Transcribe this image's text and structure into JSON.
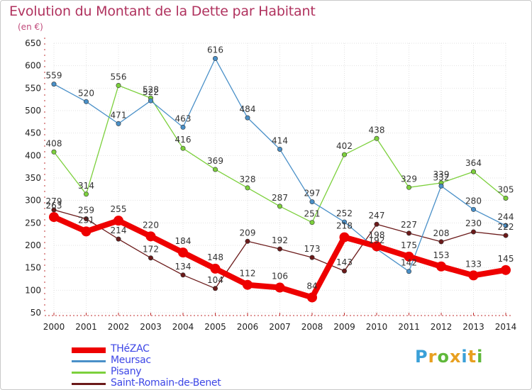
{
  "header": {
    "title": "Evolution du Montant de la Dette par Habitant",
    "unit": "(en €)"
  },
  "logo": {
    "text": "Proxiti"
  },
  "chart_data": {
    "type": "line",
    "title": "Evolution du Montant de la Dette par Habitant",
    "subtitle": "(en €)",
    "x": [
      "2000",
      "2001",
      "2002",
      "2003",
      "2004",
      "2005",
      "2006",
      "2007",
      "2008",
      "2009",
      "2010",
      "2011",
      "2012",
      "2013",
      "2014"
    ],
    "ylim": [
      50,
      650
    ],
    "yticks": [
      50,
      100,
      150,
      200,
      250,
      300,
      350,
      400,
      450,
      500,
      550,
      600,
      650
    ],
    "grid": true,
    "legend_position": "bottom-left",
    "series": [
      {
        "name": "THéZAC",
        "color": "#ee0000",
        "values": [
          263,
          231,
          255,
          220,
          184,
          148,
          112,
          106,
          84,
          218,
          198,
          175,
          153,
          133,
          145
        ]
      },
      {
        "name": "Meursac",
        "color": "#4a90c8",
        "values": [
          559,
          520,
          471,
          522,
          463,
          616,
          484,
          414,
          297,
          252,
          192,
          142,
          332,
          280,
          244
        ]
      },
      {
        "name": "Pisany",
        "color": "#7cd03c",
        "values": [
          408,
          314,
          556,
          528,
          416,
          369,
          328,
          287,
          251,
          402,
          438,
          329,
          339,
          364,
          305
        ]
      },
      {
        "name": "Saint-Romain-de-Benet",
        "color": "#6b1a1a",
        "values": [
          279,
          259,
          214,
          172,
          134,
          104,
          209,
          192,
          173,
          143,
          247,
          227,
          208,
          230,
          222
        ]
      }
    ]
  }
}
